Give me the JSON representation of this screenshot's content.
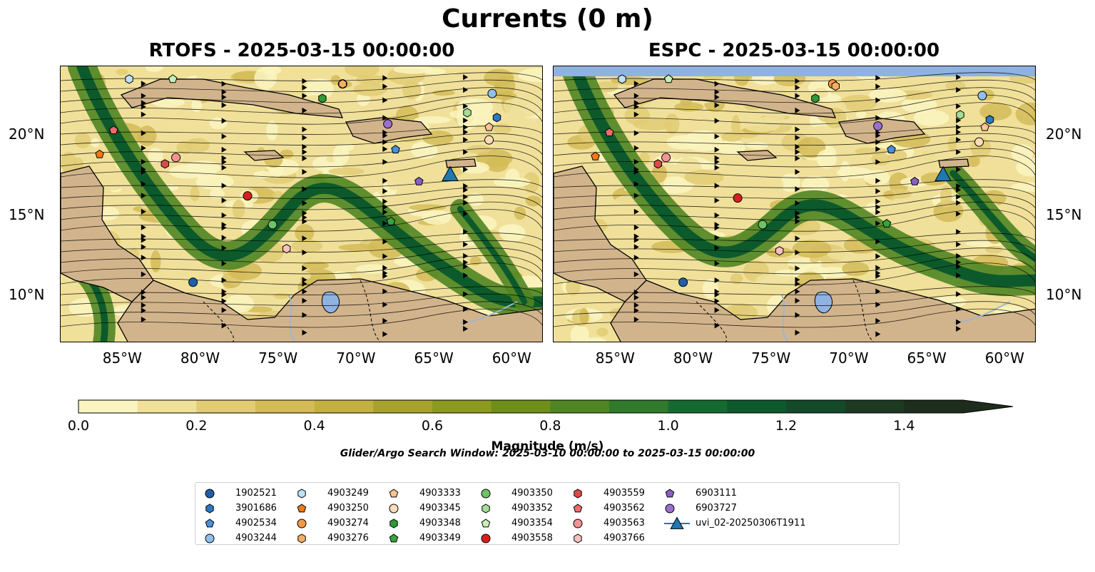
{
  "figure": {
    "title": "Currents (0 m)",
    "colorbar_label": "Magnitude (m/s)",
    "search_window": "Glider/Argo Search Window: 2025-03-10 00:00:00 to 2025-03-15 00:00:00"
  },
  "panels": [
    {
      "title": "RTOFS - 2025-03-15 00:00:00"
    },
    {
      "title": "ESPC - 2025-03-15 00:00:00"
    }
  ],
  "axes": {
    "lon_ticks": [
      "85°W",
      "80°W",
      "75°W",
      "70°W",
      "65°W",
      "60°W"
    ],
    "lat_ticks": [
      "20°N",
      "15°N",
      "10°N"
    ]
  },
  "colorbar": {
    "ticks": [
      "0.0",
      "0.2",
      "0.4",
      "0.6",
      "0.8",
      "1.0",
      "1.2",
      "1.4"
    ],
    "colors": [
      "#faf4c0",
      "#f0e09a",
      "#e2cb74",
      "#d4bb58",
      "#c4b040",
      "#a9a22c",
      "#8c9a1f",
      "#6f8f1a",
      "#4f8523",
      "#2f7a2b",
      "#156a2f",
      "#0c5a2c",
      "#134a2a",
      "#1d3a22",
      "#1d2c1c"
    ]
  },
  "map_colors": {
    "land": "#d2b48c",
    "water_body": "#8fb2e0",
    "river": "#a0b6cc",
    "glider": "#1f77b4"
  },
  "legend": [
    {
      "id": "1902521",
      "marker": "circle",
      "color": "#1f5fa8"
    },
    {
      "id": "3901686",
      "marker": "hexagon",
      "color": "#2a79c2"
    },
    {
      "id": "4902534",
      "marker": "pentagon",
      "color": "#4a90d9"
    },
    {
      "id": "4903244",
      "marker": "circle",
      "color": "#8ec0ec"
    },
    {
      "id": "4903249",
      "marker": "hexagon",
      "color": "#bfe0f7"
    },
    {
      "id": "4903250",
      "marker": "pentagon",
      "color": "#f07a14"
    },
    {
      "id": "4903274",
      "marker": "circle",
      "color": "#f59a42"
    },
    {
      "id": "4903276",
      "marker": "hexagon",
      "color": "#f8ae62"
    },
    {
      "id": "4903333",
      "marker": "pentagon",
      "color": "#f9c590"
    },
    {
      "id": "4903345",
      "marker": "circle",
      "color": "#fbdcb8"
    },
    {
      "id": "4903348",
      "marker": "hexagon",
      "color": "#2e9a35"
    },
    {
      "id": "4903349",
      "marker": "pentagon",
      "color": "#3aa23e"
    },
    {
      "id": "4903350",
      "marker": "circle",
      "color": "#6cc463"
    },
    {
      "id": "4903352",
      "marker": "hexagon",
      "color": "#a4dd95"
    },
    {
      "id": "4903354",
      "marker": "pentagon",
      "color": "#c6f0b4"
    },
    {
      "id": "4903558",
      "marker": "circle",
      "color": "#d62020"
    },
    {
      "id": "4903559",
      "marker": "hexagon",
      "color": "#dd4a4a"
    },
    {
      "id": "4903562",
      "marker": "pentagon",
      "color": "#f06a6a"
    },
    {
      "id": "4903563",
      "marker": "circle",
      "color": "#f39393"
    },
    {
      "id": "4903766",
      "marker": "hexagon",
      "color": "#f8c0c0"
    },
    {
      "id": "6903111",
      "marker": "pentagon",
      "color": "#8a5ec4"
    },
    {
      "id": "6903727",
      "marker": "circle",
      "color": "#9a70cc"
    },
    {
      "id": "uvi_02-20250306T1911",
      "marker": "triangle",
      "color": "#1f77b4"
    }
  ]
}
